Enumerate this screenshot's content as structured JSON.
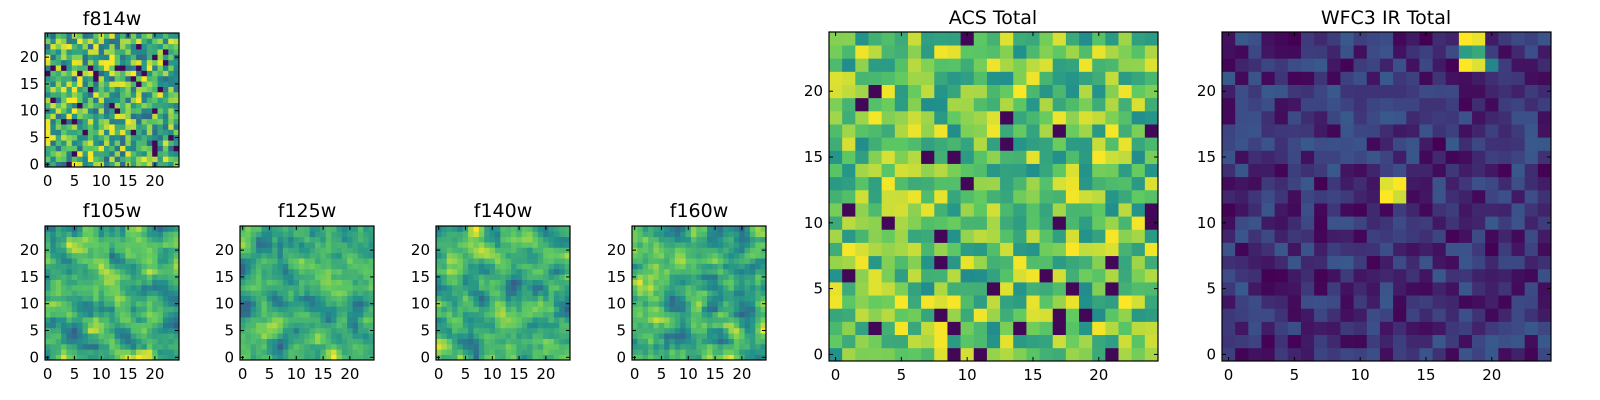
{
  "figure": {
    "colormap": "viridis",
    "colormap_stops": [
      "#440154",
      "#3b528b",
      "#21918c",
      "#5ec962",
      "#fde725"
    ]
  },
  "chart_data": [
    {
      "type": "heatmap",
      "title": "f814w",
      "grid_size": 25,
      "xticks": [
        "0",
        "5",
        "10",
        "15",
        "20"
      ],
      "yticks": [
        "0",
        "5",
        "10",
        "15",
        "20"
      ],
      "xlim": [
        0,
        25
      ],
      "ylim": [
        0,
        25
      ],
      "pattern": "fine_noise",
      "seed": 814,
      "value_range": [
        0.3,
        1.0
      ]
    },
    {
      "type": "heatmap",
      "title": "f105w",
      "grid_size": 25,
      "xticks": [
        "0",
        "5",
        "10",
        "15",
        "20"
      ],
      "yticks": [
        "0",
        "5",
        "10",
        "15",
        "20"
      ],
      "xlim": [
        0,
        25
      ],
      "ylim": [
        0,
        25
      ],
      "pattern": "blotchy_noise",
      "seed": 105,
      "value_range": [
        0.3,
        1.0
      ]
    },
    {
      "type": "heatmap",
      "title": "f125w",
      "grid_size": 25,
      "xticks": [
        "0",
        "5",
        "10",
        "15",
        "20"
      ],
      "yticks": [
        "0",
        "5",
        "10",
        "15",
        "20"
      ],
      "xlim": [
        0,
        25
      ],
      "ylim": [
        0,
        25
      ],
      "pattern": "blotchy_noise",
      "seed": 125,
      "value_range": [
        0.3,
        1.0
      ]
    },
    {
      "type": "heatmap",
      "title": "f140w",
      "grid_size": 25,
      "xticks": [
        "0",
        "5",
        "10",
        "15",
        "20"
      ],
      "yticks": [
        "0",
        "5",
        "10",
        "15",
        "20"
      ],
      "xlim": [
        0,
        25
      ],
      "ylim": [
        0,
        25
      ],
      "pattern": "blotchy_noise",
      "seed": 140,
      "value_range": [
        0.3,
        1.0
      ]
    },
    {
      "type": "heatmap",
      "title": "f160w",
      "grid_size": 25,
      "xticks": [
        "0",
        "5",
        "10",
        "15",
        "20"
      ],
      "yticks": [
        "0",
        "5",
        "10",
        "15",
        "20"
      ],
      "xlim": [
        0,
        25
      ],
      "ylim": [
        0,
        25
      ],
      "pattern": "blotchy_noise",
      "seed": 160,
      "value_range": [
        0.3,
        1.0
      ]
    },
    {
      "type": "heatmap",
      "title": "ACS Total",
      "grid_size": 25,
      "xticks": [
        "0",
        "5",
        "10",
        "15",
        "20"
      ],
      "yticks": [
        "0",
        "5",
        "10",
        "15",
        "20"
      ],
      "xlim": [
        0,
        25
      ],
      "ylim": [
        0,
        25
      ],
      "pattern": "fine_noise",
      "seed": 901,
      "value_range": [
        0.45,
        1.0
      ]
    },
    {
      "type": "heatmap",
      "title": "WFC3 IR Total",
      "grid_size": 25,
      "xticks": [
        "0",
        "5",
        "10",
        "15",
        "20"
      ],
      "yticks": [
        "0",
        "5",
        "10",
        "15",
        "20"
      ],
      "xlim": [
        0,
        25
      ],
      "ylim": [
        0,
        25
      ],
      "pattern": "faint_background",
      "seed": 777,
      "value_range": [
        0.0,
        0.28
      ],
      "bright_sources": [
        {
          "x": 18,
          "y": 24,
          "value": 1.0
        },
        {
          "x": 19,
          "y": 24,
          "value": 0.97
        },
        {
          "x": 18,
          "y": 23,
          "value": 0.55
        },
        {
          "x": 19,
          "y": 23,
          "value": 0.6
        },
        {
          "x": 18,
          "y": 22,
          "value": 1.0
        },
        {
          "x": 19,
          "y": 22,
          "value": 0.95
        },
        {
          "x": 20,
          "y": 22,
          "value": 0.45
        },
        {
          "x": 12,
          "y": 13,
          "value": 0.95
        },
        {
          "x": 13,
          "y": 13,
          "value": 1.0
        },
        {
          "x": 12,
          "y": 12,
          "value": 1.0
        },
        {
          "x": 13,
          "y": 12,
          "value": 0.92
        }
      ]
    }
  ]
}
